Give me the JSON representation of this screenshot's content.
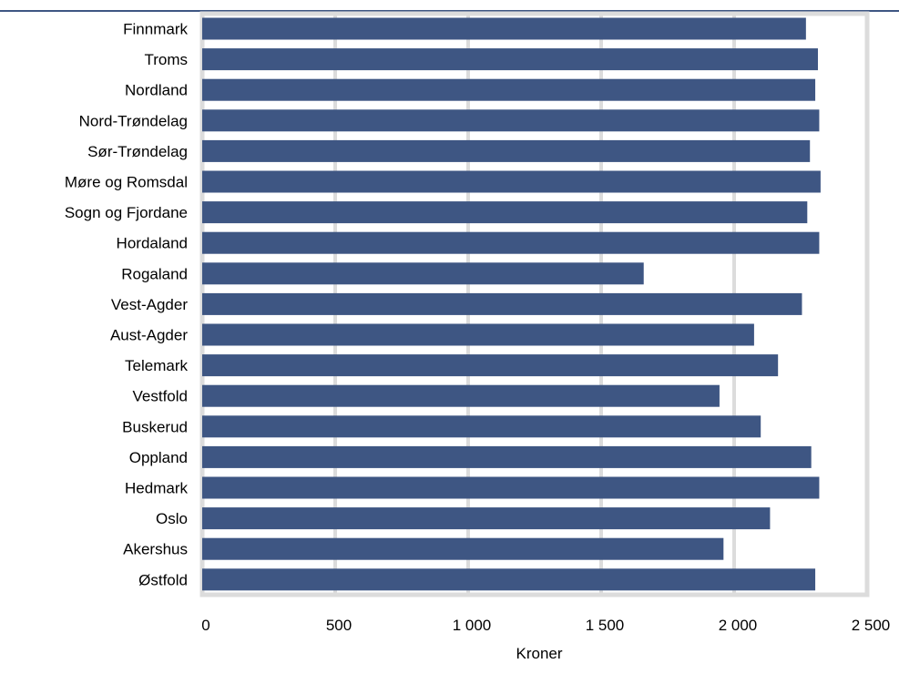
{
  "colors": {
    "bar": "#3e5683",
    "grid": "#dcdcdc",
    "top_rule": "#3e5683",
    "text": "#000000"
  },
  "chart_data": {
    "type": "bar",
    "orientation": "horizontal",
    "title": "",
    "xlabel": "Kroner",
    "ylabel": "",
    "xlim": [
      0,
      2500
    ],
    "x_ticks": [
      0,
      500,
      1000,
      1500,
      2000,
      2500
    ],
    "x_tick_labels": [
      "0",
      "500",
      "1 000",
      "1 500",
      "2 000",
      "2 500"
    ],
    "grid": true,
    "categories": [
      "Finnmark",
      "Troms",
      "Nordland",
      "Nord-Trøndelag",
      "Sør-Trøndelag",
      "Møre og Romsdal",
      "Sogn og Fjordane",
      "Hordaland",
      "Rogaland",
      "Vest-Agder",
      "Aust-Agder",
      "Telemark",
      "Vestfold",
      "Buskerud",
      "Oppland",
      "Hedmark",
      "Oslo",
      "Akershus",
      "Østfold"
    ],
    "values": [
      2270,
      2315,
      2305,
      2320,
      2285,
      2325,
      2275,
      2320,
      1660,
      2255,
      2075,
      2165,
      1945,
      2100,
      2290,
      2320,
      2135,
      1960,
      2305
    ]
  }
}
